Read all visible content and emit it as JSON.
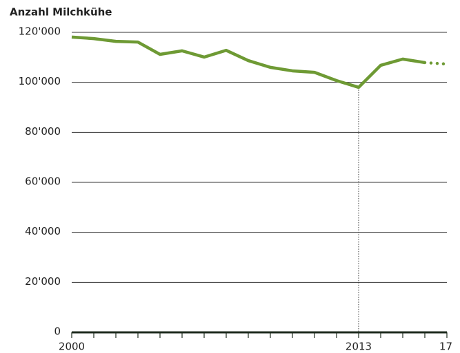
{
  "chart_data": {
    "type": "line",
    "title": "Anzahl Milchkühe",
    "x": [
      2000,
      2001,
      2002,
      2003,
      2004,
      2005,
      2006,
      2007,
      2008,
      2009,
      2010,
      2011,
      2012,
      2013,
      2014,
      2015,
      2016,
      2017
    ],
    "series": [
      {
        "color": "#6e9a34",
        "style": "solid",
        "values": [
          118100,
          117500,
          116400,
          116100,
          111200,
          112600,
          110100,
          112800,
          108700,
          106000,
          104600,
          104000,
          100700,
          98000,
          106800,
          109300,
          107900,
          null
        ]
      },
      {
        "color": "#6e9a34",
        "style": "dotted",
        "values": [
          null,
          null,
          null,
          null,
          null,
          null,
          null,
          null,
          null,
          null,
          null,
          null,
          null,
          null,
          null,
          null,
          107900,
          107300
        ]
      }
    ],
    "xlim": [
      2000,
      2017
    ],
    "xticks": [
      2000,
      2013,
      {
        "value": 2017,
        "label": "17"
      }
    ],
    "xminor_ticks": [
      2000,
      2001,
      2002,
      2003,
      2004,
      2005,
      2006,
      2007,
      2008,
      2009,
      2010,
      2011,
      2012,
      2013,
      2014,
      2015,
      2016,
      2017
    ],
    "highlight_x": 2013,
    "ylim": [
      0,
      120000
    ],
    "yticks": [
      0,
      {
        "value": 20000,
        "label": "20'000"
      },
      {
        "value": 40000,
        "label": "40'000"
      },
      {
        "value": 60000,
        "label": "60'000"
      },
      {
        "value": 80000,
        "label": "80'000"
      },
      {
        "value": 100000,
        "label": "100'000"
      },
      {
        "value": 120000,
        "label": "120'000"
      }
    ],
    "grid": true
  }
}
